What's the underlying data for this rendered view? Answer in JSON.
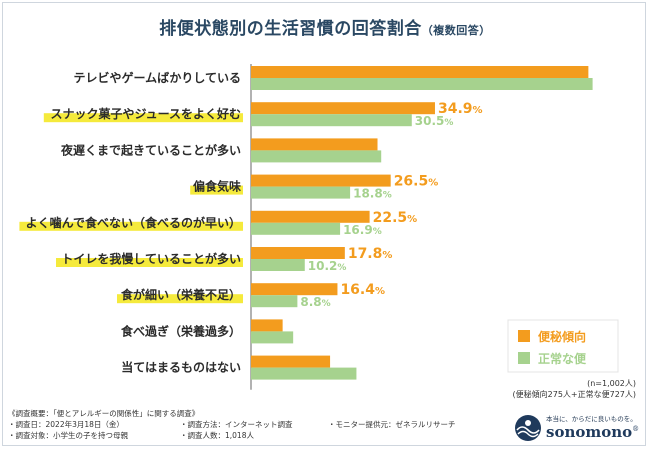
{
  "title": "排便状態別の生活習慣の回答割合",
  "title_sub": "（複数回答）",
  "chart_data": {
    "type": "bar",
    "orientation": "horizontal",
    "title": "排便状態別の生活習慣の回答割合（複数回答）",
    "categories": [
      "テレビやゲームばかりしている",
      "スナック菓子やジュースをよく好む",
      "夜遅くまで起きていることが多い",
      "偏食気味",
      "よく噛んで食べない（食べるのが早い）",
      "トイレを我慢していることが多い",
      "食が細い（栄養不足）",
      "食べ過ぎ（栄養過多）",
      "当てはまるものはない"
    ],
    "highlighted": [
      false,
      true,
      false,
      true,
      true,
      true,
      true,
      false,
      false
    ],
    "series": [
      {
        "name": "便秘傾向",
        "color": "#f39c1e",
        "values": [
          64.0,
          34.9,
          24.0,
          26.5,
          22.5,
          17.8,
          16.4,
          6.0,
          15.0
        ],
        "labels": [
          "",
          "34.9%",
          "",
          "26.5%",
          "22.5%",
          "17.8%",
          "16.4%",
          "",
          ""
        ]
      },
      {
        "name": "正常な便",
        "color": "#a6d28e",
        "values": [
          64.8,
          30.5,
          24.7,
          18.8,
          16.9,
          10.2,
          8.8,
          8.0,
          20.0
        ],
        "labels": [
          "",
          "30.5%",
          "",
          "18.8%",
          "16.9%",
          "10.2%",
          "8.8%",
          "",
          ""
        ]
      }
    ],
    "xlim": [
      0,
      70
    ],
    "legend": "bottom-right",
    "grid": false
  },
  "note": {
    "n": "(n=1,002人)",
    "breakdown": "(便秘傾向275人+正常な便727人)"
  },
  "survey": {
    "heading": "《調査概要：「便とアレルギーの関係性」に関する調査》",
    "date": "・調査日：2022年3月18日（金）",
    "method": "・調査方法：インターネット調査",
    "provider": "・モニター提供元：ゼネラルリサーチ",
    "target": "・調査対象：小学生の子を持つ母親",
    "count": "・調査人数：1,018人"
  },
  "brand": {
    "tagline": "本当に、からだに良いものを。",
    "name": "sonomono",
    "mark": "®"
  },
  "colors": {
    "constipation": "#f39c1e",
    "normal": "#a6d28e",
    "highlight": "#f5ea3c",
    "title": "#2a4863"
  }
}
